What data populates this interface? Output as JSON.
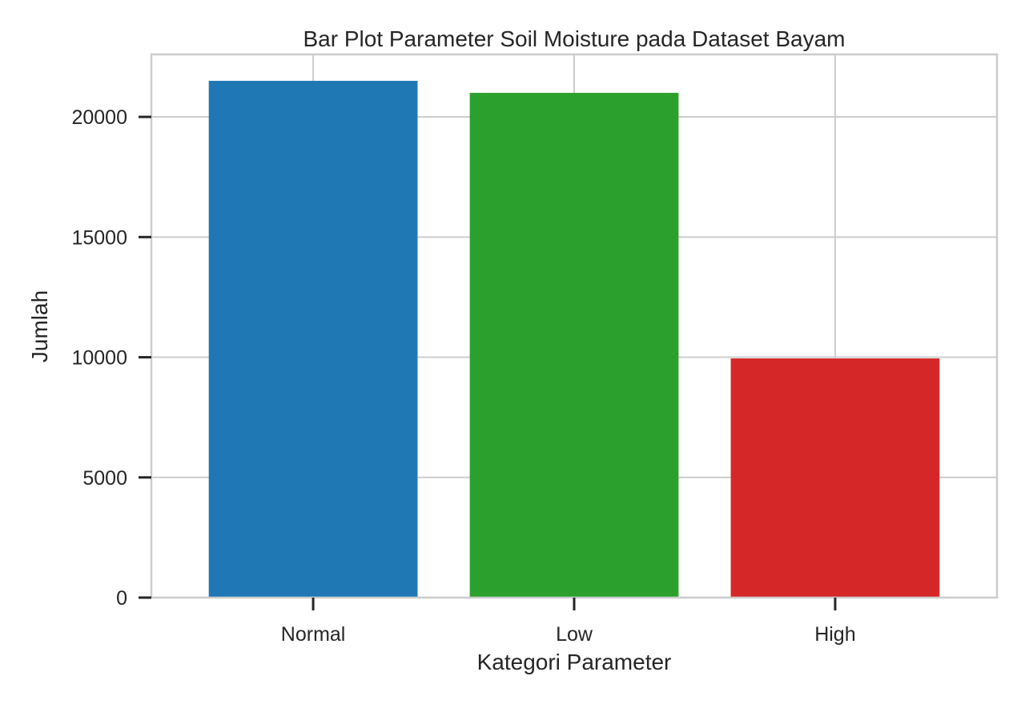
{
  "chart_data": {
    "type": "bar",
    "title": "Bar Plot Parameter Soil Moisture pada Dataset Bayam",
    "xlabel": "Kategori Parameter",
    "ylabel": "Jumlah",
    "categories": [
      "Normal",
      "Low",
      "High"
    ],
    "values": [
      21500,
      21000,
      9950
    ],
    "colors": [
      "#1f77b4",
      "#2ca02c",
      "#d62728"
    ],
    "ylim": [
      0,
      22600
    ],
    "yticks": [
      0,
      5000,
      10000,
      15000,
      20000
    ],
    "grid": true,
    "legend": "none"
  }
}
